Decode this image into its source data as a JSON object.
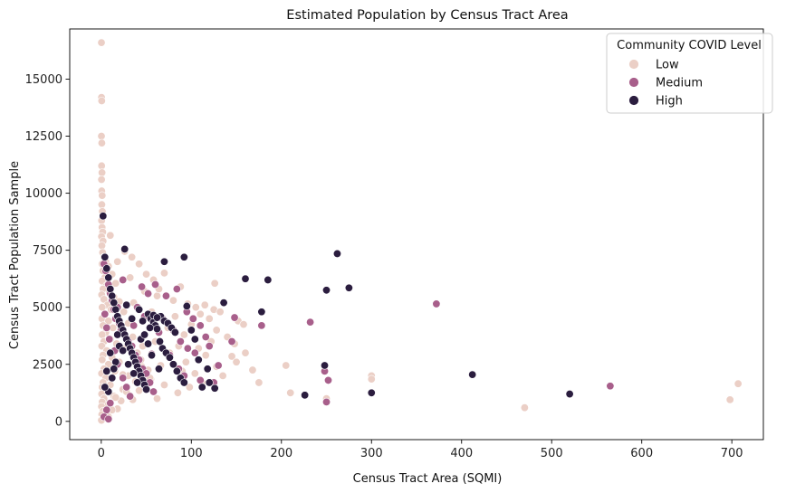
{
  "chart_data": {
    "type": "scatter",
    "title": "Estimated Population by Census Tract Area",
    "xlabel": "Census Tract Area (SQMI)",
    "ylabel": "Census Tract Population Sample",
    "xlim": [
      -35,
      735
    ],
    "ylim": [
      -800,
      17200
    ],
    "x_ticks": [
      0,
      100,
      200,
      300,
      400,
      500,
      600,
      700
    ],
    "y_ticks": [
      0,
      2500,
      5000,
      7500,
      10000,
      12500,
      15000
    ],
    "grid": false,
    "legend": {
      "title": "Community COVID Level",
      "placement": "top-right",
      "entries": [
        "Low",
        "Medium",
        "High"
      ]
    },
    "colors": {
      "Low": "#ebcfc6",
      "Medium": "#a85f8b",
      "High": "#2b1d3f"
    },
    "series": [
      {
        "name": "Low",
        "points": [
          [
            0.2,
            16600
          ],
          [
            0.3,
            14200
          ],
          [
            0.5,
            14050
          ],
          [
            0.2,
            12500
          ],
          [
            0.6,
            12200
          ],
          [
            0.4,
            11200
          ],
          [
            0.8,
            10900
          ],
          [
            0.3,
            10600
          ],
          [
            0.5,
            10100
          ],
          [
            1.0,
            9900
          ],
          [
            0.6,
            9500
          ],
          [
            1.2,
            9200
          ],
          [
            0.4,
            8800
          ],
          [
            0.9,
            8500
          ],
          [
            1.6,
            8300
          ],
          [
            0.3,
            8100
          ],
          [
            2.0,
            7900
          ],
          [
            10,
            8150
          ],
          [
            0.7,
            7700
          ],
          [
            1.5,
            7400
          ],
          [
            3,
            7200
          ],
          [
            5,
            7000
          ],
          [
            1,
            6900
          ],
          [
            8,
            6800
          ],
          [
            2,
            6600
          ],
          [
            12,
            6450
          ],
          [
            4,
            6300
          ],
          [
            1,
            6150
          ],
          [
            16,
            6050
          ],
          [
            6,
            5950
          ],
          [
            2,
            5800
          ],
          [
            9,
            5650
          ],
          [
            0.5,
            5550
          ],
          [
            14,
            5450
          ],
          [
            3,
            5350
          ],
          [
            20,
            5250
          ],
          [
            7,
            5100
          ],
          [
            1,
            5000
          ],
          [
            11,
            4900
          ],
          [
            25,
            4800
          ],
          [
            4,
            4700
          ],
          [
            18,
            4600
          ],
          [
            0.8,
            4500
          ],
          [
            8,
            4400
          ],
          [
            30,
            4300
          ],
          [
            2,
            4200
          ],
          [
            13,
            4100
          ],
          [
            22,
            4000
          ],
          [
            5,
            3900
          ],
          [
            1,
            3800
          ],
          [
            35,
            3700
          ],
          [
            10,
            3600
          ],
          [
            3,
            3500
          ],
          [
            17,
            3400
          ],
          [
            0.6,
            3300
          ],
          [
            27,
            3200
          ],
          [
            6,
            3100
          ],
          [
            40,
            3000
          ],
          [
            2,
            2900
          ],
          [
            12,
            2800
          ],
          [
            1,
            2700
          ],
          [
            20,
            2600
          ],
          [
            8,
            2500
          ],
          [
            45,
            2400
          ],
          [
            3,
            2300
          ],
          [
            15,
            2200
          ],
          [
            0.4,
            2100
          ],
          [
            30,
            2000
          ],
          [
            5,
            1900
          ],
          [
            55,
            1850
          ],
          [
            2,
            1700
          ],
          [
            10,
            1600
          ],
          [
            1,
            1500
          ],
          [
            24,
            1400
          ],
          [
            6,
            1300
          ],
          [
            0.5,
            1200
          ],
          [
            14,
            1100
          ],
          [
            3,
            1000
          ],
          [
            35,
            950
          ],
          [
            1,
            850
          ],
          [
            8,
            750
          ],
          [
            0.3,
            650
          ],
          [
            18,
            550
          ],
          [
            2,
            450
          ],
          [
            0.7,
            300
          ],
          [
            5,
            200
          ],
          [
            1,
            100
          ],
          [
            0.2,
            50
          ],
          [
            26,
            7450
          ],
          [
            34,
            7200
          ],
          [
            42,
            6900
          ],
          [
            50,
            6450
          ],
          [
            70,
            6500
          ],
          [
            58,
            6200
          ],
          [
            88,
            5900
          ],
          [
            48,
            5700
          ],
          [
            62,
            5500
          ],
          [
            80,
            5300
          ],
          [
            96,
            5150
          ],
          [
            105,
            5000
          ],
          [
            115,
            5100
          ],
          [
            125,
            4900
          ],
          [
            110,
            4700
          ],
          [
            120,
            4500
          ],
          [
            128,
            4000
          ],
          [
            122,
            3500
          ],
          [
            140,
            3700
          ],
          [
            148,
            3400
          ],
          [
            145,
            2850
          ],
          [
            150,
            2600
          ],
          [
            128,
            2400
          ],
          [
            135,
            2000
          ],
          [
            112,
            1700
          ],
          [
            98,
            1500
          ],
          [
            85,
            1250
          ],
          [
            62,
            1000
          ],
          [
            70,
            1600
          ],
          [
            54,
            1900
          ],
          [
            44,
            2700
          ],
          [
            66,
            2450
          ],
          [
            76,
            3000
          ],
          [
            86,
            3300
          ],
          [
            92,
            3800
          ],
          [
            100,
            4250
          ],
          [
            82,
            4600
          ],
          [
            74,
            4100
          ],
          [
            60,
            3500
          ],
          [
            52,
            2250
          ],
          [
            38,
            1750
          ],
          [
            28,
            1300
          ],
          [
            22,
            900
          ],
          [
            12,
            500
          ],
          [
            8,
            200
          ],
          [
            126,
            6050
          ],
          [
            132,
            4800
          ],
          [
            152,
            4400
          ],
          [
            158,
            4250
          ],
          [
            160,
            3000
          ],
          [
            168,
            2250
          ],
          [
            175,
            1700
          ],
          [
            205,
            2450
          ],
          [
            210,
            1250
          ],
          [
            250,
            1000
          ],
          [
            300,
            2000
          ],
          [
            300,
            1850
          ],
          [
            470,
            600
          ],
          [
            698,
            950
          ],
          [
            707,
            1650
          ],
          [
            104,
            2100
          ],
          [
            94,
            2600
          ],
          [
            116,
            2900
          ],
          [
            108,
            3200
          ],
          [
            90,
            2200
          ],
          [
            64,
            5800
          ],
          [
            56,
            4800
          ],
          [
            36,
            5200
          ],
          [
            32,
            6300
          ],
          [
            18,
            7000
          ],
          [
            46,
            3300
          ],
          [
            24,
            2050
          ],
          [
            16,
            1050
          ],
          [
            42,
            1350
          ]
        ]
      },
      {
        "name": "Medium",
        "points": [
          [
            3,
            6900
          ],
          [
            5,
            6600
          ],
          [
            8,
            6000
          ],
          [
            10,
            5600
          ],
          [
            12,
            5300
          ],
          [
            14,
            4900
          ],
          [
            4,
            4700
          ],
          [
            16,
            4500
          ],
          [
            20,
            4300
          ],
          [
            6,
            4100
          ],
          [
            22,
            4000
          ],
          [
            26,
            3800
          ],
          [
            9,
            3600
          ],
          [
            30,
            3500
          ],
          [
            34,
            3300
          ],
          [
            15,
            3100
          ],
          [
            38,
            2900
          ],
          [
            42,
            2700
          ],
          [
            18,
            2500
          ],
          [
            46,
            2300
          ],
          [
            50,
            2100
          ],
          [
            24,
            1900
          ],
          [
            54,
            1700
          ],
          [
            28,
            1500
          ],
          [
            58,
            1300
          ],
          [
            32,
            1100
          ],
          [
            10,
            800
          ],
          [
            6,
            500
          ],
          [
            3,
            200
          ],
          [
            8,
            100
          ],
          [
            45,
            5900
          ],
          [
            60,
            6000
          ],
          [
            72,
            5500
          ],
          [
            84,
            5800
          ],
          [
            95,
            4800
          ],
          [
            102,
            4500
          ],
          [
            110,
            4200
          ],
          [
            116,
            3700
          ],
          [
            120,
            3300
          ],
          [
            104,
            3000
          ],
          [
            96,
            3200
          ],
          [
            88,
            3500
          ],
          [
            80,
            4000
          ],
          [
            68,
            4500
          ],
          [
            64,
            3900
          ],
          [
            76,
            2900
          ],
          [
            86,
            2300
          ],
          [
            92,
            2000
          ],
          [
            110,
            1800
          ],
          [
            125,
            1700
          ],
          [
            130,
            2450
          ],
          [
            145,
            3500
          ],
          [
            148,
            4550
          ],
          [
            178,
            4200
          ],
          [
            232,
            4350
          ],
          [
            248,
            2200
          ],
          [
            252,
            1800
          ],
          [
            250,
            850
          ],
          [
            372,
            5150
          ],
          [
            565,
            1550
          ],
          [
            56,
            2950
          ],
          [
            48,
            4600
          ],
          [
            36,
            4200
          ],
          [
            40,
            5000
          ],
          [
            52,
            5600
          ],
          [
            24,
            6200
          ],
          [
            18,
            5000
          ]
        ]
      },
      {
        "name": "High",
        "points": [
          [
            2,
            9000
          ],
          [
            4,
            7200
          ],
          [
            6,
            6700
          ],
          [
            8,
            6300
          ],
          [
            10,
            5800
          ],
          [
            12,
            5500
          ],
          [
            14,
            5200
          ],
          [
            16,
            4900
          ],
          [
            18,
            4600
          ],
          [
            20,
            4400
          ],
          [
            22,
            4200
          ],
          [
            24,
            4000
          ],
          [
            26,
            3800
          ],
          [
            28,
            3600
          ],
          [
            30,
            3400
          ],
          [
            32,
            3200
          ],
          [
            34,
            3000
          ],
          [
            36,
            2800
          ],
          [
            38,
            2600
          ],
          [
            40,
            2400
          ],
          [
            42,
            2200
          ],
          [
            44,
            2000
          ],
          [
            46,
            1800
          ],
          [
            48,
            1600
          ],
          [
            50,
            1400
          ],
          [
            26,
            7550
          ],
          [
            52,
            4700
          ],
          [
            55,
            4500
          ],
          [
            58,
            4350
          ],
          [
            60,
            4200
          ],
          [
            62,
            4050
          ],
          [
            66,
            4600
          ],
          [
            70,
            4400
          ],
          [
            74,
            4300
          ],
          [
            78,
            4100
          ],
          [
            82,
            3900
          ],
          [
            65,
            3500
          ],
          [
            68,
            3200
          ],
          [
            72,
            3000
          ],
          [
            76,
            2800
          ],
          [
            80,
            2500
          ],
          [
            84,
            2200
          ],
          [
            88,
            1900
          ],
          [
            92,
            1700
          ],
          [
            30,
            2500
          ],
          [
            36,
            2100
          ],
          [
            40,
            1700
          ],
          [
            44,
            3600
          ],
          [
            48,
            3800
          ],
          [
            54,
            4100
          ],
          [
            58,
            4650
          ],
          [
            62,
            4550
          ],
          [
            70,
            7000
          ],
          [
            92,
            7200
          ],
          [
            100,
            4000
          ],
          [
            104,
            3600
          ],
          [
            108,
            2700
          ],
          [
            112,
            1500
          ],
          [
            120,
            1700
          ],
          [
            136,
            5200
          ],
          [
            160,
            6250
          ],
          [
            185,
            6200
          ],
          [
            178,
            4800
          ],
          [
            250,
            5750
          ],
          [
            262,
            7350
          ],
          [
            275,
            5850
          ],
          [
            226,
            1150
          ],
          [
            248,
            2450
          ],
          [
            300,
            1250
          ],
          [
            412,
            2050
          ],
          [
            520,
            1200
          ],
          [
            20,
            3300
          ],
          [
            16,
            2600
          ],
          [
            12,
            1900
          ],
          [
            8,
            1300
          ],
          [
            14,
            2300
          ],
          [
            24,
            3100
          ],
          [
            46,
            4400
          ],
          [
            56,
            2900
          ],
          [
            64,
            2300
          ],
          [
            52,
            3400
          ],
          [
            42,
            4900
          ],
          [
            34,
            4500
          ],
          [
            28,
            5100
          ],
          [
            18,
            3800
          ],
          [
            10,
            3000
          ],
          [
            6,
            2200
          ],
          [
            4,
            1500
          ],
          [
            95,
            5050
          ],
          [
            118,
            2300
          ],
          [
            126,
            1450
          ]
        ]
      }
    ]
  }
}
